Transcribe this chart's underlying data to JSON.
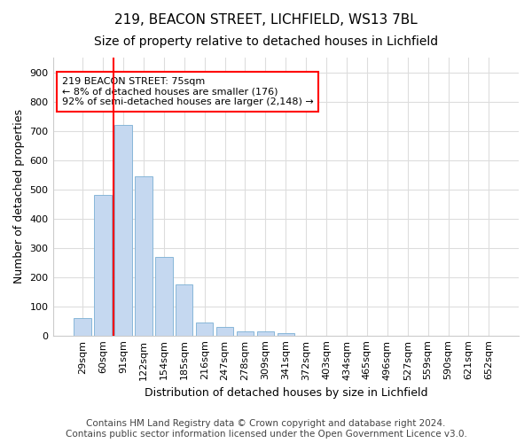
{
  "title1": "219, BEACON STREET, LICHFIELD, WS13 7BL",
  "title2": "Size of property relative to detached houses in Lichfield",
  "xlabel": "Distribution of detached houses by size in Lichfield",
  "ylabel": "Number of detached properties",
  "categories": [
    "29sqm",
    "60sqm",
    "91sqm",
    "122sqm",
    "154sqm",
    "185sqm",
    "216sqm",
    "247sqm",
    "278sqm",
    "309sqm",
    "341sqm",
    "372sqm",
    "403sqm",
    "434sqm",
    "465sqm",
    "496sqm",
    "527sqm",
    "559sqm",
    "590sqm",
    "621sqm",
    "652sqm"
  ],
  "values": [
    60,
    480,
    720,
    545,
    270,
    175,
    45,
    30,
    15,
    15,
    8,
    0,
    0,
    0,
    0,
    0,
    0,
    0,
    0,
    0,
    0
  ],
  "bar_color": "#c5d8f0",
  "bar_edge_color": "#7aafd4",
  "vline_x": 1.5,
  "vline_color": "red",
  "annotation_text": "219 BEACON STREET: 75sqm\n← 8% of detached houses are smaller (176)\n92% of semi-detached houses are larger (2,148) →",
  "annotation_box_color": "white",
  "annotation_box_edge": "red",
  "ylim": [
    0,
    950
  ],
  "yticks": [
    0,
    100,
    200,
    300,
    400,
    500,
    600,
    700,
    800,
    900
  ],
  "footer": "Contains HM Land Registry data © Crown copyright and database right 2024.\nContains public sector information licensed under the Open Government Licence v3.0.",
  "bg_color": "#ffffff",
  "plot_bg_color": "#ffffff",
  "grid_color": "#dddddd",
  "title_fontsize": 11,
  "subtitle_fontsize": 10,
  "axis_label_fontsize": 9,
  "tick_fontsize": 8,
  "footer_fontsize": 7.5,
  "ann_fontsize": 8
}
